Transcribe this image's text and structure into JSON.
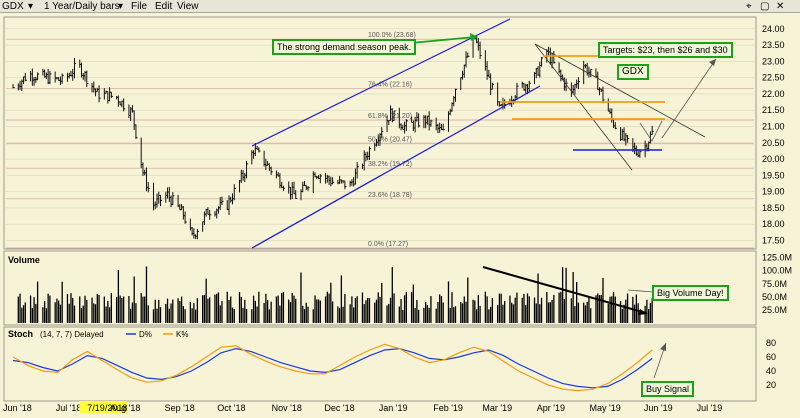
{
  "toolbar": {
    "symbol": "GDX",
    "period": "1 Year/Daily bars",
    "menus": [
      "File",
      "Edit",
      "View"
    ]
  },
  "colors": {
    "background": "#f7f3d6",
    "candles": "#111111",
    "channel": "#1a1ad0",
    "orange": "#f39c12",
    "green_box": "#1aa31a",
    "d_line": "#1a3ad6",
    "k_line": "#f39c12",
    "fib_line": "#d89a9a"
  },
  "chart_data": [
    {
      "type": "line",
      "title": "GDX",
      "ylim": [
        17.3,
        24.3
      ],
      "y_ticks": [
        17.5,
        18.0,
        18.5,
        19.0,
        19.5,
        20.0,
        20.5,
        21.0,
        21.5,
        22.0,
        22.5,
        23.0,
        23.5,
        24.0
      ],
      "y_tick_labels": [
        "17.50",
        "18.00",
        "18.50",
        "19.00",
        "19.50",
        "20.00",
        "20.50",
        "21.00",
        "21.50",
        "22.00",
        "22.50",
        "23.00",
        "23.50",
        "24.00"
      ],
      "x_labels": [
        "Jun '18",
        "Jul '18",
        "7/19/2018",
        "Aug '18",
        "Sep '18",
        "Oct '18",
        "Nov '18",
        "Dec '18",
        "Jan '19",
        "Feb '19",
        "Mar '19",
        "Apr '19",
        "May '19",
        "Jun '19",
        "Jul '19"
      ],
      "fib_levels": [
        {
          "label": "100.0% (23.68)",
          "value": 23.68
        },
        {
          "label": "76.4% (22.16)",
          "value": 22.16
        },
        {
          "label": "61.8% (21.20)",
          "value": 21.2
        },
        {
          "label": "50.0% (20.47)",
          "value": 20.47
        },
        {
          "label": "38.2% (19.72)",
          "value": 19.72
        },
        {
          "label": "23.6% (18.78)",
          "value": 18.78
        },
        {
          "label": "0.0% (17.27)",
          "value": 17.27
        }
      ],
      "price_path": [
        {
          "date": "2018-06-01",
          "close": 22.2
        },
        {
          "date": "2018-06-10",
          "close": 22.6
        },
        {
          "date": "2018-06-20",
          "close": 22.5
        },
        {
          "date": "2018-06-30",
          "close": 22.4
        },
        {
          "date": "2018-07-08",
          "close": 22.9
        },
        {
          "date": "2018-07-19",
          "close": 22.0
        },
        {
          "date": "2018-07-30",
          "close": 21.9
        },
        {
          "date": "2018-08-08",
          "close": 21.4
        },
        {
          "date": "2018-08-14",
          "close": 19.6
        },
        {
          "date": "2018-08-20",
          "close": 18.6
        },
        {
          "date": "2018-08-28",
          "close": 18.9
        },
        {
          "date": "2018-09-06",
          "close": 18.3
        },
        {
          "date": "2018-09-11",
          "close": 17.6
        },
        {
          "date": "2018-09-20",
          "close": 18.4
        },
        {
          "date": "2018-10-01",
          "close": 18.6
        },
        {
          "date": "2018-10-10",
          "close": 19.5
        },
        {
          "date": "2018-10-16",
          "close": 20.3
        },
        {
          "date": "2018-10-24",
          "close": 19.8
        },
        {
          "date": "2018-11-01",
          "close": 19.3
        },
        {
          "date": "2018-11-10",
          "close": 18.8
        },
        {
          "date": "2018-11-20",
          "close": 19.6
        },
        {
          "date": "2018-11-30",
          "close": 19.3
        },
        {
          "date": "2018-12-10",
          "close": 19.2
        },
        {
          "date": "2018-12-20",
          "close": 20.2
        },
        {
          "date": "2019-01-02",
          "close": 21.4
        },
        {
          "date": "2019-01-10",
          "close": 21.0
        },
        {
          "date": "2019-01-22",
          "close": 21.2
        },
        {
          "date": "2019-02-01",
          "close": 20.8
        },
        {
          "date": "2019-02-08",
          "close": 22.2
        },
        {
          "date": "2019-02-19",
          "close": 23.7
        },
        {
          "date": "2019-02-26",
          "close": 22.6
        },
        {
          "date": "2019-03-05",
          "close": 21.5
        },
        {
          "date": "2019-03-15",
          "close": 22.1
        },
        {
          "date": "2019-03-25",
          "close": 22.5
        },
        {
          "date": "2019-04-01",
          "close": 23.3
        },
        {
          "date": "2019-04-08",
          "close": 22.6
        },
        {
          "date": "2019-04-15",
          "close": 22.0
        },
        {
          "date": "2019-04-22",
          "close": 22.9
        },
        {
          "date": "2019-04-30",
          "close": 22.3
        },
        {
          "date": "2019-05-08",
          "close": 21.2
        },
        {
          "date": "2019-05-15",
          "close": 20.6
        },
        {
          "date": "2019-05-22",
          "close": 20.2
        },
        {
          "date": "2019-05-27",
          "close": 20.4
        },
        {
          "date": "2019-05-31",
          "close": 20.8
        }
      ],
      "annotations": {
        "demand_peak": "The strong demand season peak.",
        "targets": "Targets: $23, then $26 and $30",
        "symbol_box": "GDX"
      }
    },
    {
      "type": "bar",
      "title": "Volume",
      "ylim": [
        0,
        130
      ],
      "y_ticks": [
        25,
        50,
        75,
        100,
        125
      ],
      "y_tick_labels": [
        "25.0M",
        "50.0M",
        "75.0M",
        "100.0M",
        "125.0M"
      ],
      "annotations": {
        "big_volume": "Big Volume Day!"
      }
    },
    {
      "type": "line",
      "title": "Stoch",
      "params": "(14, 7, 7) Delayed",
      "series": [
        {
          "name": "D%",
          "values": [
            55,
            52,
            45,
            40,
            50,
            62,
            58,
            48,
            38,
            30,
            28,
            32,
            40,
            52,
            66,
            72,
            68,
            60,
            52,
            46,
            40,
            38,
            42,
            52,
            62,
            70,
            72,
            66,
            58,
            56,
            60,
            66,
            70,
            62,
            50,
            40,
            30,
            22,
            18,
            16,
            18,
            28,
            42,
            58
          ]
        },
        {
          "name": "K%",
          "values": [
            60,
            48,
            40,
            38,
            56,
            68,
            55,
            42,
            30,
            24,
            26,
            34,
            46,
            60,
            74,
            76,
            64,
            54,
            46,
            40,
            36,
            36,
            48,
            60,
            70,
            78,
            72,
            60,
            52,
            56,
            66,
            74,
            68,
            54,
            40,
            30,
            20,
            14,
            12,
            14,
            22,
            36,
            52,
            70
          ]
        }
      ],
      "ylim": [
        0,
        100
      ],
      "y_ticks": [
        20,
        40,
        60,
        80
      ],
      "y_tick_labels": [
        "20",
        "40",
        "60",
        "80"
      ],
      "annotations": {
        "buy_signal": "Buy Signal"
      }
    }
  ]
}
